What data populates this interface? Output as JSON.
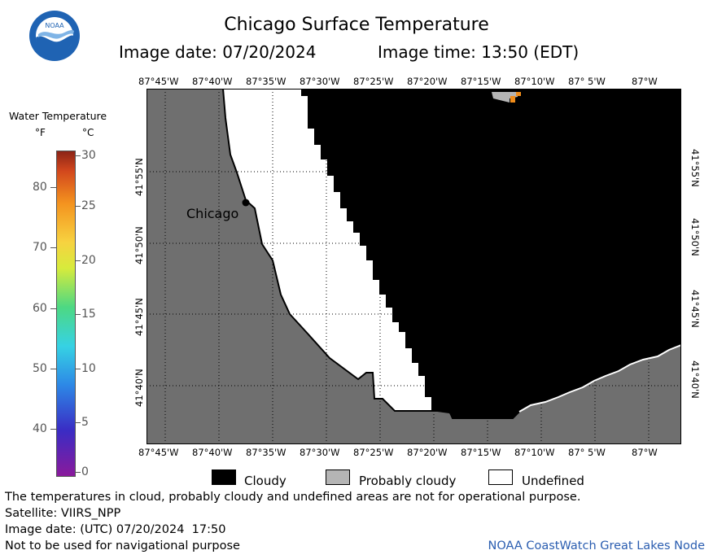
{
  "header": {
    "title": "Chicago Surface Temperature",
    "image_date_label": "Image date: 07/20/2024",
    "image_time_label": "Image time: 13:50 (EDT)",
    "logo_text": "NOAA"
  },
  "map": {
    "lon_ticks": [
      "87°45'W",
      "87°40'W",
      "87°35'W",
      "87°30'W",
      "87°25'W",
      "87°20'W",
      "87°15'W",
      "87°10'W",
      "87° 5'W",
      "87°W"
    ],
    "lat_ticks": [
      "41°55'N",
      "41°50'N",
      "41°45'N",
      "41°40'N"
    ],
    "city_label": "Chicago",
    "colors": {
      "land": "#6f6f6f",
      "cloudy": "#000000",
      "probably_cloudy": "#b5b5b5",
      "undefined": "#ffffff",
      "grid": "#000000",
      "warm_pixel": "#f08c1a"
    }
  },
  "colorbar": {
    "title": "Water Temperature",
    "unit_f": "°F",
    "unit_c": "°C",
    "f_ticks": [
      "80",
      "70",
      "60",
      "50",
      "40"
    ],
    "c_ticks": [
      "30",
      "25",
      "20",
      "15",
      "10",
      "5",
      "0"
    ]
  },
  "key": {
    "cloudy": "Cloudy",
    "probably_cloudy": "Probably cloudy",
    "undefined": "Undefined"
  },
  "footer": {
    "disclaimer": "The temperatures in cloud, probably cloudy and undefined areas are not for operational purpose.",
    "satellite": "Satellite: VIIRS_NPP",
    "utc_date": "Image date: (UTC) 07/20/2024  17:50",
    "navigation": "Not to be used for navigational purpose",
    "credit": "NOAA CoastWatch Great Lakes Node"
  }
}
